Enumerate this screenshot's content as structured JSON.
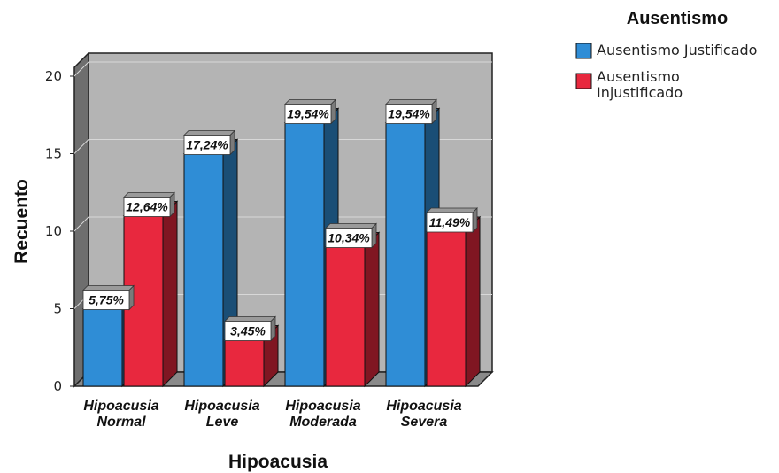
{
  "chart_data": {
    "type": "bar",
    "xlabel": "Hipoacusia",
    "ylabel": "Recuento",
    "ylim": [
      0,
      20
    ],
    "yticks": [
      0,
      5,
      10,
      15,
      20
    ],
    "grid": true,
    "legend_position": "top-right",
    "legend_title": "Ausentismo",
    "categories": [
      [
        "Hipoacusia",
        "Normal"
      ],
      [
        "Hipoacusia",
        "Leve"
      ],
      [
        "Hipoacusia",
        "Moderada"
      ],
      [
        "Hipoacusia",
        "Severa"
      ]
    ],
    "series": [
      {
        "name": "Ausentismo Justificado",
        "name_lines": [
          "Ausentismo Justificado"
        ],
        "color": "#2f8dd6",
        "values": [
          5,
          15,
          17,
          17
        ],
        "labels": [
          "5,75%",
          "17,24%",
          "19,54%",
          "19,54%"
        ]
      },
      {
        "name": "Ausentismo Injustificado",
        "name_lines": [
          "Ausentismo",
          "Injustificado"
        ],
        "color": "#e8283e",
        "values": [
          11,
          3,
          9,
          10
        ],
        "labels": [
          "12,64%",
          "3,45%",
          "10,34%",
          "11,49%"
        ]
      }
    ]
  }
}
